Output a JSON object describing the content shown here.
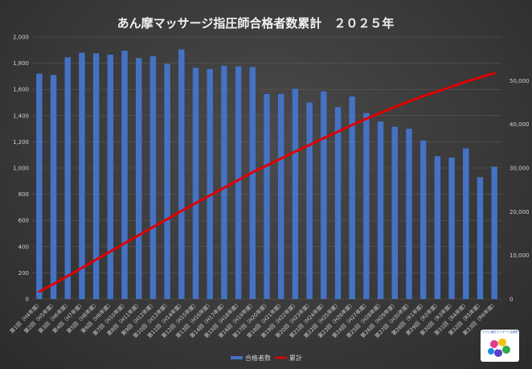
{
  "colors": {
    "bar": "#4472c4",
    "line": "#e00000",
    "grid": "#5a5a5a",
    "text": "#d0d0d0"
  },
  "chart_data": {
    "type": "bar",
    "title": "あん摩マッサージ指圧師合格者数累計　２０２５年",
    "categories": [
      "第1回（H4年度）",
      "第2回（H5年度）",
      "第3回（H6年度）",
      "第4回（H7年度）",
      "第5回（H8年度）",
      "第6回（H9年度）",
      "第7回（H10年度）",
      "第8回（H11年度）",
      "第9回（H12年度）",
      "第10回（H13年度）",
      "第11回（H14年度）",
      "第12回（H15年度）",
      "第13回（H16年度）",
      "第14回（H17年度）",
      "第15回（H18年度）",
      "第16回（H19年度）",
      "第17回（H20年度）",
      "第18回（H21年度）",
      "第19回（H22年度）",
      "第20回（H23年度）",
      "第21回（H24年度）",
      "第22回（H25年度）",
      "第23回（H26年度）",
      "第24回（H27年度）",
      "第25回（H28年度）",
      "第26回（H29年度）",
      "第27回（H30年度）",
      "第28回（R1年度）",
      "第29回（R2年度）",
      "第30回（R3年度）",
      "第31回（R4年度）",
      "第32回（R5年度）",
      "第33回（R6年度）"
    ],
    "series": [
      {
        "name": "合格者数",
        "type": "bar",
        "axis": "left",
        "values": [
          1720,
          1710,
          1845,
          1880,
          1875,
          1865,
          1895,
          1840,
          1855,
          1795,
          1905,
          1765,
          1755,
          1780,
          1775,
          1770,
          1565,
          1565,
          1605,
          1500,
          1585,
          1465,
          1545,
          1420,
          1355,
          1315,
          1300,
          1210,
          1090,
          1080,
          1150,
          930,
          1010
        ]
      },
      {
        "name": "累計",
        "type": "line",
        "axis": "right",
        "values": [
          1720,
          3430,
          5275,
          7155,
          9030,
          10895,
          12790,
          14630,
          16485,
          18280,
          20185,
          21950,
          23705,
          25485,
          27260,
          29030,
          30595,
          32160,
          33765,
          35265,
          36850,
          38315,
          39860,
          41280,
          42635,
          43950,
          45250,
          46460,
          47550,
          48630,
          49780,
          50710,
          51720
        ]
      }
    ],
    "y_left": {
      "min": 0,
      "max": 2000,
      "step": 200,
      "ticks": [
        "0",
        "200",
        "400",
        "600",
        "800",
        "1,000",
        "1,200",
        "1,400",
        "1,600",
        "1,800",
        "2,000"
      ]
    },
    "y_right": {
      "min": 0,
      "max": 60000,
      "ticks": [
        "0",
        "10,000",
        "20,000",
        "30,000",
        "40,000",
        "50,000"
      ]
    },
    "legend": {
      "position": "bottom",
      "items": [
        "合格者数",
        "累計"
      ]
    },
    "grid": true
  },
  "logo": {
    "text": "かうい鍼灸マッサージ治療院"
  }
}
